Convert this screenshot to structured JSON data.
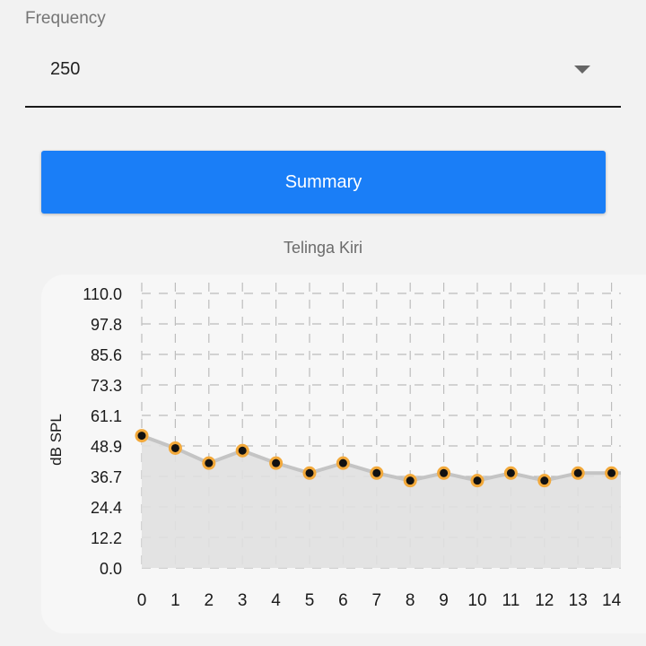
{
  "frequency": {
    "label": "Frequency",
    "selected": "250"
  },
  "summary_button": {
    "label": "Summary"
  },
  "chart_data": {
    "type": "line",
    "title": "Telinga Kiri",
    "xlabel": "",
    "ylabel": "dB SPL",
    "x": [
      0,
      1,
      2,
      3,
      4,
      5,
      6,
      7,
      8,
      9,
      10,
      11,
      12,
      13,
      14
    ],
    "series": [
      {
        "values": [
          53,
          48,
          42,
          47,
          42,
          38,
          42,
          38,
          35,
          38,
          35,
          38,
          35,
          38,
          38
        ]
      }
    ],
    "ylim": [
      0,
      110
    ],
    "yticks": [
      "110.0",
      "97.8",
      "85.6",
      "73.3",
      "61.1",
      "48.9",
      "36.7",
      "24.4",
      "12.2",
      "0.0"
    ],
    "xticks": [
      "0",
      "1",
      "2",
      "3",
      "4",
      "5",
      "6",
      "7",
      "8",
      "9",
      "10",
      "11",
      "12",
      "13",
      "14"
    ],
    "grid": true,
    "fill": true,
    "colors": {
      "line": "#c4c4c4",
      "fill": "#e0e0e0",
      "marker_ring": "#f2a93b",
      "marker_center": "#111111"
    }
  }
}
